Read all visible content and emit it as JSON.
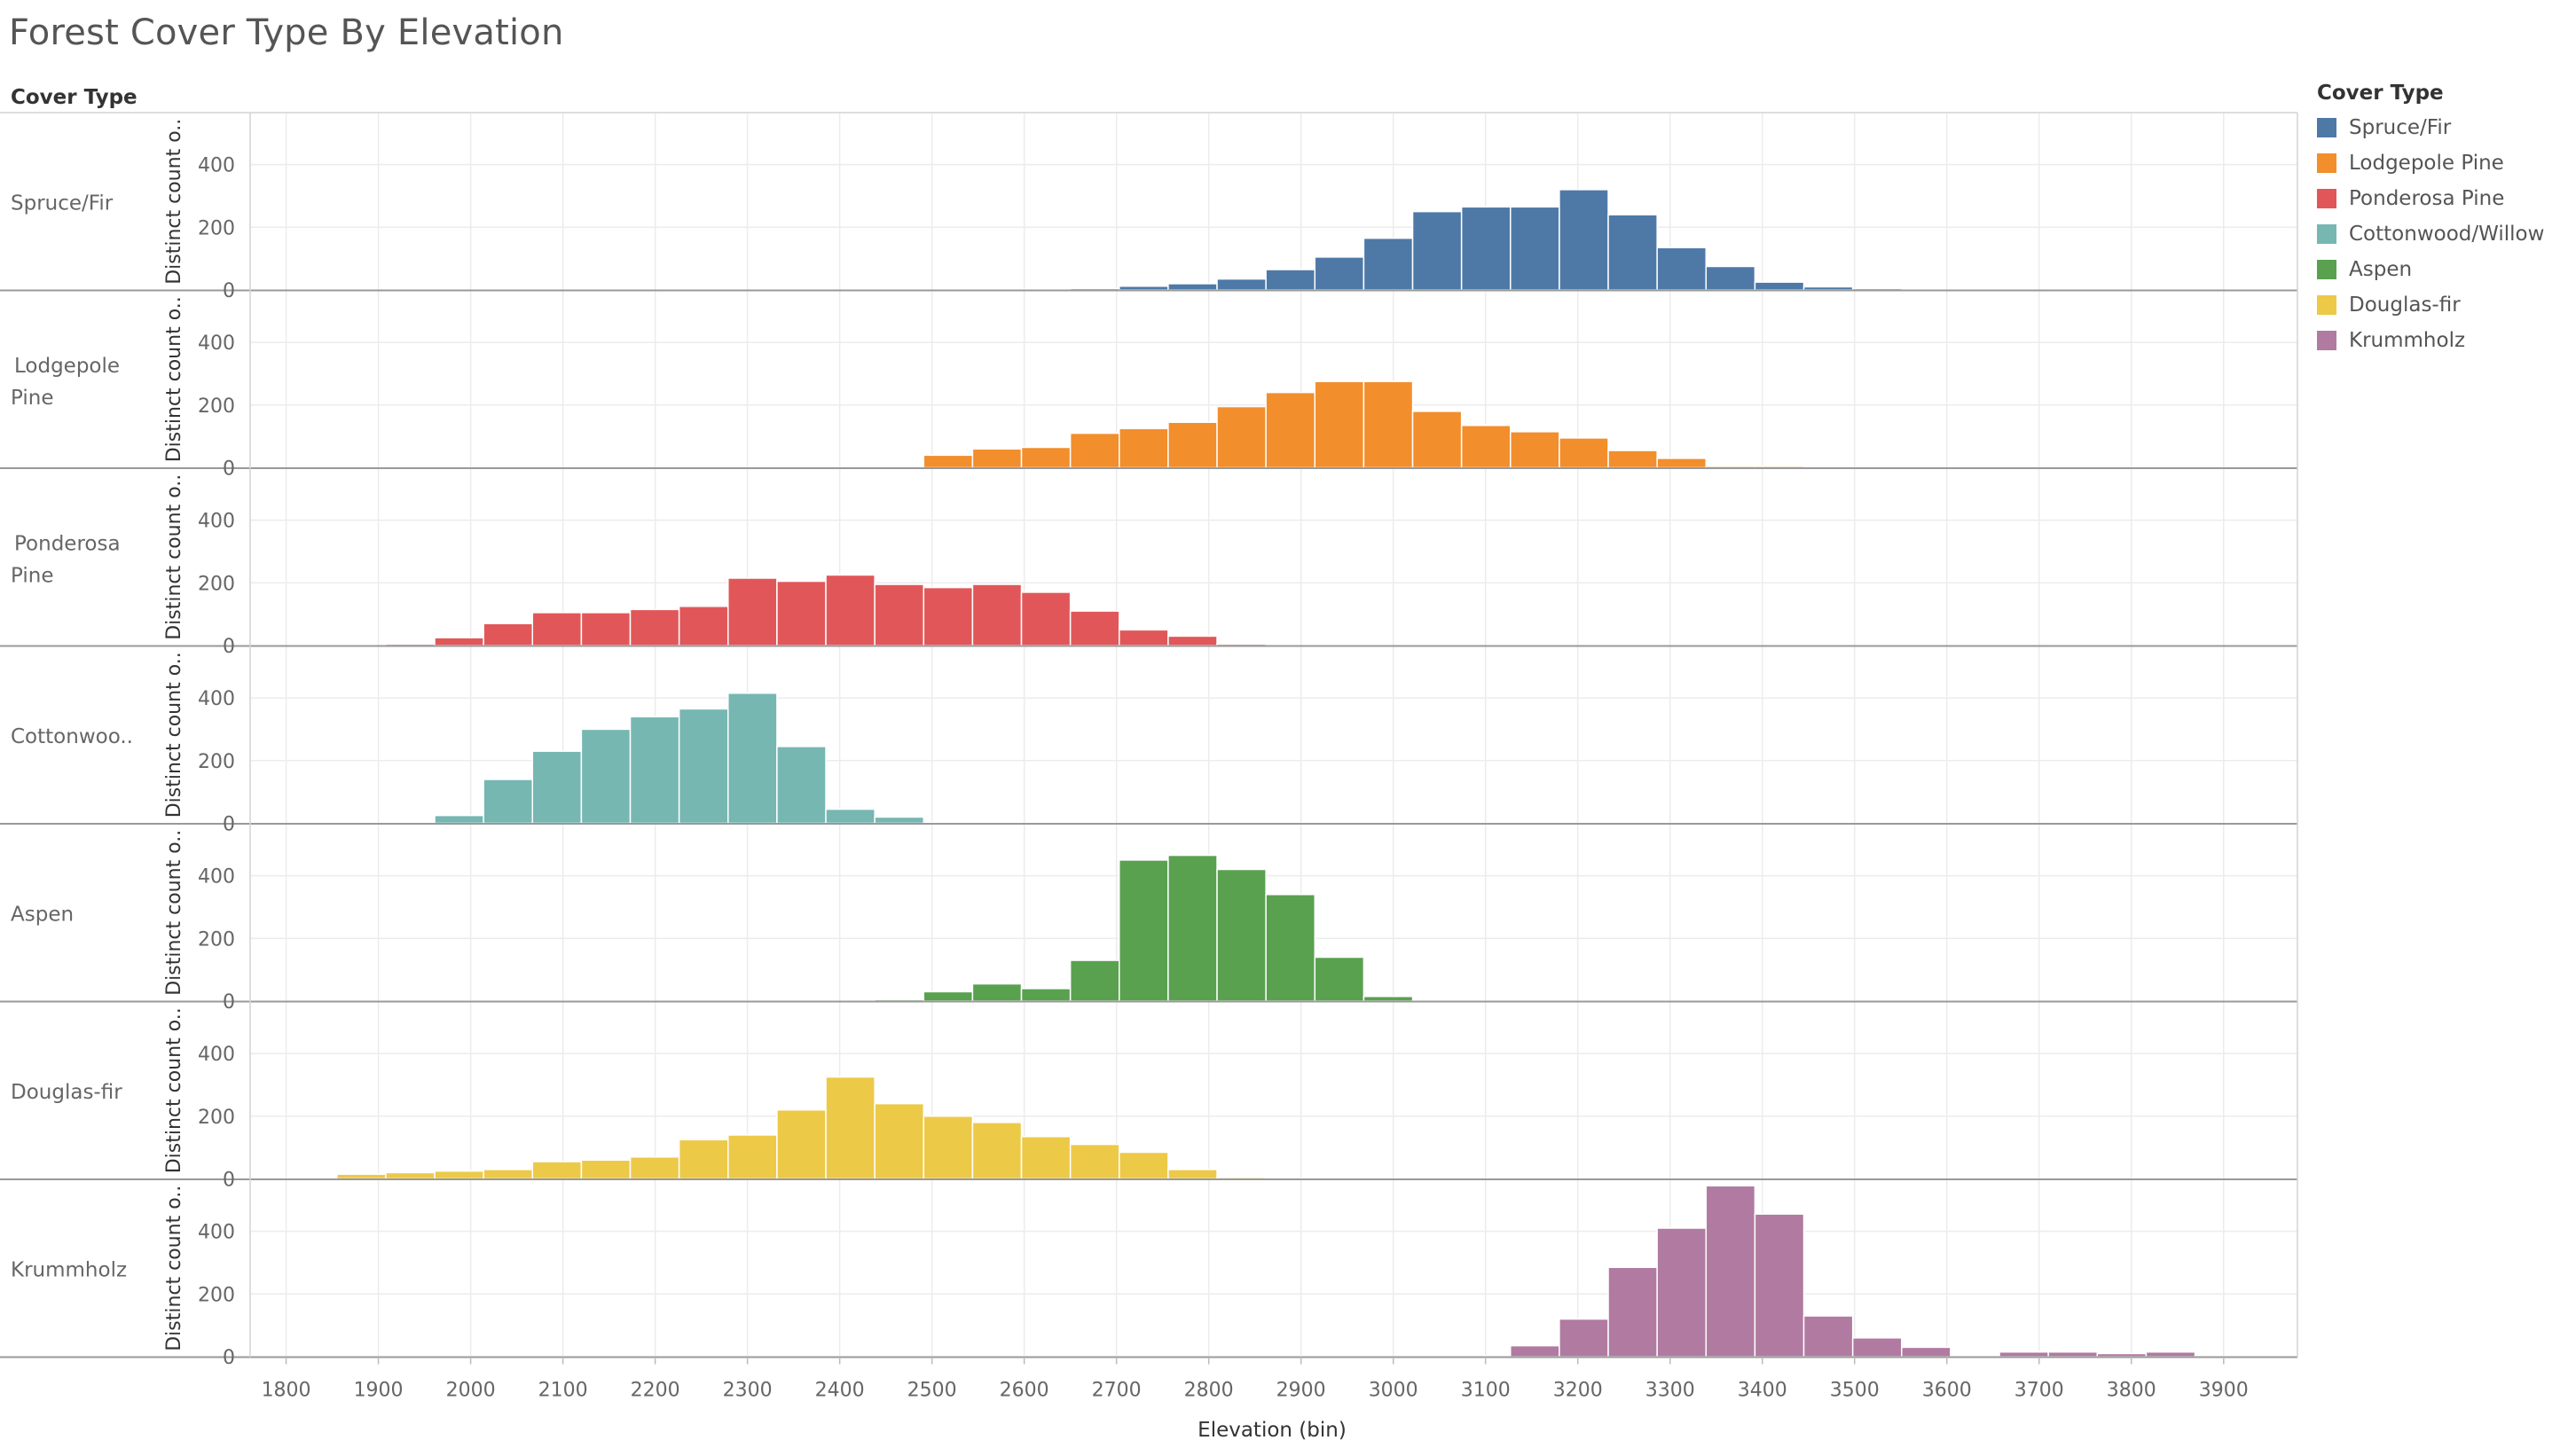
{
  "title": "Forest Cover Type By Elevation",
  "row_header": "Cover Type",
  "legend": {
    "title": "Cover Type",
    "items": [
      {
        "label": "Spruce/Fir",
        "color": "#4e79a7"
      },
      {
        "label": "Lodgepole Pine",
        "color": "#f28e2b"
      },
      {
        "label": "Ponderosa Pine",
        "color": "#e15759"
      },
      {
        "label": "Cottonwood/Willow",
        "color": "#76b7b2"
      },
      {
        "label": "Aspen",
        "color": "#59a14f"
      },
      {
        "label": "Douglas-fir",
        "color": "#edc948"
      },
      {
        "label": "Krummholz",
        "color": "#b07aa1"
      }
    ]
  },
  "chart_data": {
    "type": "bar",
    "title": "Forest Cover Type By Elevation",
    "xlabel": "Elevation (bin)",
    "ylabel": "Distinct count o..",
    "x_ticks": [
      1800,
      1900,
      2000,
      2100,
      2200,
      2300,
      2400,
      2500,
      2600,
      2700,
      2800,
      2900,
      3000,
      3100,
      3200,
      3300,
      3400,
      3500,
      3600,
      3700,
      3800,
      3900
    ],
    "y_ticks": [
      0,
      200,
      400
    ],
    "ylim": [
      0,
      560
    ],
    "bin_width": 53,
    "bin_starts": [
      1855,
      1908,
      1961,
      2014,
      2067,
      2120,
      2173,
      2226,
      2279,
      2332,
      2385,
      2438,
      2491,
      2544,
      2597,
      2650,
      2703,
      2756,
      2809,
      2862,
      2915,
      2968,
      3021,
      3074,
      3127,
      3180,
      3233,
      3286,
      3339,
      3392,
      3445,
      3498,
      3551,
      3604,
      3657,
      3710,
      3763,
      3816
    ],
    "series": [
      {
        "name": "Spruce/Fir",
        "row_label": "Spruce/Fir",
        "color": "#4e79a7",
        "values": [
          0,
          0,
          0,
          0,
          0,
          0,
          0,
          0,
          0,
          0,
          0,
          0,
          0,
          0,
          2,
          5,
          12,
          20,
          35,
          65,
          105,
          165,
          250,
          265,
          265,
          320,
          240,
          135,
          75,
          25,
          10,
          5,
          0,
          0,
          0,
          0,
          0,
          0
        ]
      },
      {
        "name": "Lodgepole Pine",
        "row_label": "Lodgepole Pine",
        "color": "#f28e2b",
        "values": [
          0,
          0,
          0,
          0,
          0,
          0,
          0,
          0,
          0,
          0,
          0,
          2,
          40,
          60,
          65,
          110,
          125,
          145,
          195,
          240,
          275,
          275,
          180,
          135,
          115,
          95,
          55,
          30,
          5,
          5,
          0,
          0,
          0,
          0,
          0,
          0,
          0,
          0
        ]
      },
      {
        "name": "Ponderosa Pine",
        "row_label": "Ponderosa Pine",
        "color": "#e15759",
        "values": [
          0,
          5,
          25,
          70,
          105,
          105,
          115,
          125,
          215,
          205,
          225,
          195,
          185,
          195,
          170,
          110,
          50,
          30,
          5,
          0,
          0,
          0,
          0,
          0,
          0,
          0,
          0,
          0,
          0,
          0,
          0,
          0,
          0,
          0,
          0,
          0,
          0,
          0
        ]
      },
      {
        "name": "Cottonwood/Willow",
        "row_label": "Cottonwoo..",
        "color": "#76b7b2",
        "values": [
          0,
          0,
          25,
          140,
          230,
          300,
          340,
          365,
          415,
          245,
          45,
          20,
          2,
          0,
          0,
          0,
          0,
          0,
          0,
          0,
          0,
          0,
          0,
          0,
          0,
          0,
          0,
          0,
          0,
          0,
          0,
          0,
          0,
          0,
          0,
          0,
          0,
          0
        ]
      },
      {
        "name": "Aspen",
        "row_label": "Aspen",
        "color": "#59a14f",
        "values": [
          0,
          0,
          0,
          0,
          0,
          0,
          0,
          0,
          0,
          0,
          0,
          5,
          30,
          55,
          40,
          130,
          450,
          465,
          420,
          340,
          140,
          15,
          0,
          0,
          0,
          0,
          0,
          0,
          0,
          0,
          0,
          0,
          0,
          0,
          0,
          0,
          0,
          0
        ]
      },
      {
        "name": "Douglas-fir",
        "row_label": "Douglas-fir",
        "color": "#edc948",
        "values": [
          15,
          20,
          25,
          30,
          55,
          60,
          70,
          125,
          140,
          220,
          325,
          240,
          200,
          180,
          135,
          110,
          85,
          30,
          5,
          2,
          0,
          0,
          0,
          0,
          0,
          0,
          0,
          0,
          0,
          0,
          0,
          0,
          0,
          0,
          0,
          0,
          0,
          0
        ]
      },
      {
        "name": "Krummholz",
        "row_label": "Krummholz",
        "color": "#b07aa1",
        "values": [
          0,
          0,
          0,
          0,
          0,
          0,
          0,
          0,
          0,
          0,
          0,
          0,
          0,
          0,
          0,
          0,
          0,
          0,
          0,
          2,
          2,
          0,
          0,
          3,
          35,
          120,
          285,
          410,
          545,
          455,
          130,
          60,
          30,
          2,
          15,
          15,
          10,
          15
        ]
      }
    ]
  }
}
